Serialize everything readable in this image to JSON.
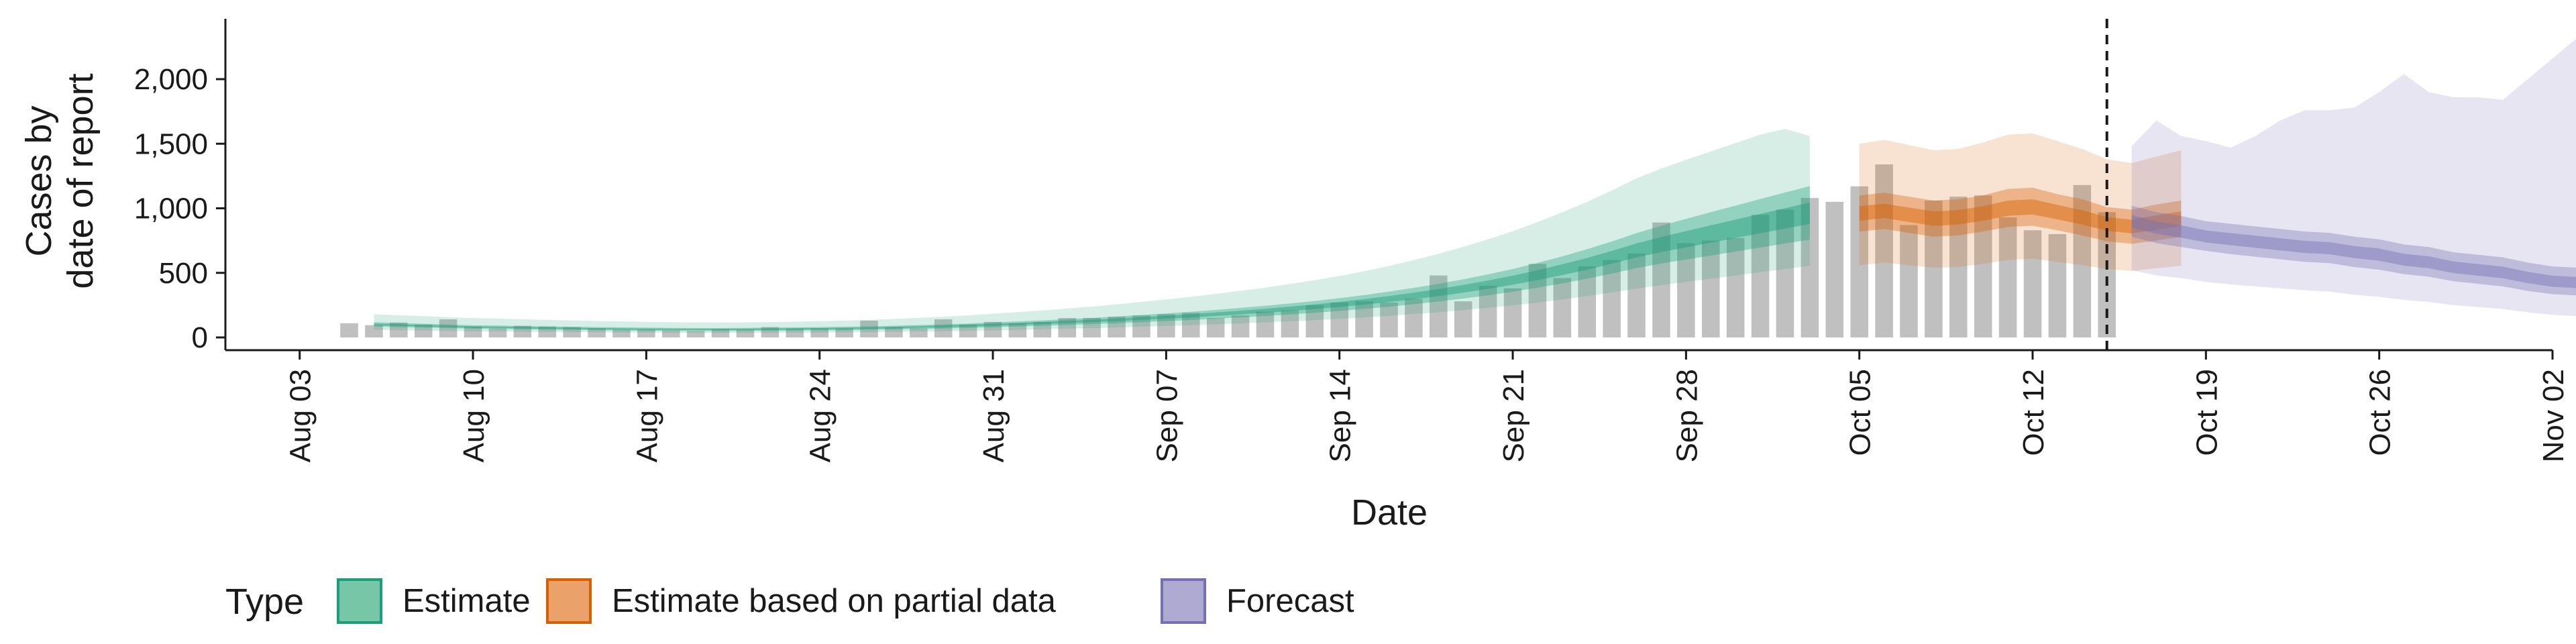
{
  "chart_data": {
    "type": "area",
    "xlabel": "Date",
    "ylabel": [
      "Cases by",
      "date of report"
    ],
    "ylim": [
      0,
      2400
    ],
    "y_ticks": [
      0,
      500,
      1000,
      1500,
      2000
    ],
    "y_tick_labels": [
      "0",
      "500",
      "1,000",
      "1,500",
      "2,000"
    ],
    "x_range": [
      "2020-07-31",
      "2020-11-02"
    ],
    "x_ticks": [
      "2020-08-03",
      "2020-08-10",
      "2020-08-17",
      "2020-08-24",
      "2020-08-31",
      "2020-09-07",
      "2020-09-14",
      "2020-09-21",
      "2020-09-28",
      "2020-10-05",
      "2020-10-12",
      "2020-10-19",
      "2020-10-26",
      "2020-11-02"
    ],
    "x_tick_labels": [
      "Aug 03",
      "Aug 10",
      "Aug 17",
      "Aug 24",
      "Aug 31",
      "Sep 07",
      "Sep 14",
      "Sep 21",
      "Sep 28",
      "Oct 05",
      "Oct 12",
      "Oct 19",
      "Oct 26",
      "Nov 02"
    ],
    "vline_date": "2020-10-15",
    "legend": {
      "position": "bottom",
      "title": "Type",
      "items": [
        {
          "label": "Estimate",
          "fill": "#78c6a8",
          "stroke": "#1b9e77"
        },
        {
          "label": "Estimate based on partial data",
          "fill": "#eba26a",
          "stroke": "#d95f02"
        },
        {
          "label": "Forecast",
          "fill": "#aeaad2",
          "stroke": "#7570b3"
        }
      ]
    },
    "colors": {
      "estimate": "#1b9e77",
      "partial": "#d95f02",
      "forecast": "#7570b3",
      "bars": "#bdbdbd"
    },
    "bars": {
      "start_date": "2020-08-05",
      "values": [
        110,
        95,
        115,
        100,
        140,
        85,
        70,
        90,
        85,
        80,
        70,
        60,
        60,
        55,
        50,
        65,
        60,
        80,
        70,
        70,
        70,
        130,
        80,
        70,
        140,
        100,
        120,
        110,
        120,
        150,
        150,
        160,
        170,
        180,
        190,
        150,
        170,
        200,
        210,
        250,
        270,
        280,
        270,
        300,
        480,
        280,
        400,
        380,
        570,
        460,
        550,
        600,
        650,
        890,
        730,
        750,
        770,
        950,
        990,
        1080,
        1050,
        1170,
        1340,
        870,
        1060,
        1090,
        1100,
        930,
        830,
        800,
        1180,
        970
      ]
    },
    "series": [
      {
        "name": "Estimate",
        "start_date": "2020-08-06",
        "median": [
          100,
          95,
          90,
          85,
          80,
          78,
          75,
          72,
          70,
          68,
          66,
          64,
          63,
          62,
          62,
          63,
          64,
          66,
          68,
          70,
          73,
          77,
          81,
          86,
          92,
          98,
          105,
          112,
          120,
          128,
          137,
          147,
          157,
          168,
          180,
          193,
          207,
          222,
          238,
          256,
          276,
          298,
          322,
          348,
          377,
          409,
          444,
          483,
          525,
          571,
          621,
          675,
          720,
          760,
          800,
          840,
          880,
          920,
          960
        ],
        "q25": [
          85,
          80,
          76,
          72,
          68,
          66,
          63,
          60,
          58,
          56,
          54,
          52,
          51,
          50,
          50,
          51,
          52,
          53,
          55,
          56,
          59,
          62,
          65,
          69,
          74,
          79,
          85,
          90,
          97,
          103,
          110,
          118,
          126,
          135,
          145,
          155,
          166,
          178,
          191,
          205,
          221,
          238,
          257,
          278,
          301,
          326,
          354,
          385,
          418,
          455,
          494,
          537,
          572,
          603,
          634,
          665,
          696,
          727,
          758
        ],
        "q75": [
          118,
          112,
          106,
          100,
          94,
          92,
          88,
          85,
          83,
          80,
          78,
          76,
          74,
          73,
          73,
          74,
          76,
          78,
          80,
          83,
          86,
          91,
          96,
          101,
          108,
          116,
          124,
          132,
          142,
          151,
          162,
          174,
          186,
          199,
          213,
          229,
          245,
          263,
          282,
          304,
          328,
          355,
          384,
          415,
          450,
          488,
          530,
          577,
          628,
          683,
          743,
          808,
          865,
          918,
          970,
          1021,
          1072,
          1122,
          1172
        ],
        "q05": [
          60,
          56,
          53,
          50,
          47,
          46,
          44,
          42,
          41,
          40,
          38,
          37,
          36,
          35,
          35,
          36,
          36,
          37,
          38,
          40,
          41,
          43,
          46,
          48,
          52,
          55,
          59,
          63,
          68,
          72,
          77,
          83,
          89,
          95,
          102,
          109,
          117,
          125,
          134,
          144,
          155,
          167,
          181,
          195,
          211,
          229,
          248,
          270,
          294,
          320,
          348,
          378,
          405,
          430,
          455,
          480,
          505,
          530,
          555
        ],
        "q95": [
          180,
          172,
          165,
          157,
          150,
          146,
          141,
          136,
          132,
          128,
          124,
          121,
          118,
          116,
          116,
          117,
          119,
          122,
          126,
          130,
          136,
          143,
          151,
          160,
          171,
          183,
          196,
          209,
          224,
          239,
          256,
          275,
          294,
          315,
          337,
          361,
          386,
          414,
          443,
          476,
          513,
          554,
          599,
          648,
          701,
          760,
          823,
          893,
          969,
          1050,
          1138,
          1232,
          1308,
          1375,
          1440,
          1505,
          1570,
          1615,
          1560
        ]
      },
      {
        "name": "Estimate based on partial data",
        "start_date": "2020-10-05",
        "median": [
          960,
          980,
          950,
          920,
          930,
          960,
          1000,
          1010,
          970,
          930,
          880,
          860,
          890,
          920
        ],
        "q25": [
          820,
          840,
          810,
          780,
          790,
          820,
          855,
          865,
          830,
          790,
          745,
          725,
          750,
          780
        ],
        "q75": [
          1100,
          1120,
          1090,
          1060,
          1070,
          1100,
          1150,
          1160,
          1110,
          1070,
          1010,
          990,
          1030,
          1060
        ],
        "q05": [
          560,
          580,
          560,
          540,
          545,
          570,
          600,
          610,
          585,
          560,
          530,
          515,
          535,
          555
        ],
        "q95": [
          1500,
          1530,
          1490,
          1450,
          1460,
          1510,
          1570,
          1580,
          1520,
          1460,
          1380,
          1350,
          1400,
          1450
        ]
      },
      {
        "name": "Forecast",
        "start_date": "2020-10-16",
        "median": [
          900,
          850,
          820,
          780,
          760,
          740,
          720,
          700,
          690,
          660,
          640,
          600,
          580,
          540,
          520,
          500,
          460,
          430,
          420
        ],
        "q25": [
          780,
          730,
          700,
          670,
          645,
          625,
          605,
          585,
          575,
          545,
          525,
          490,
          470,
          435,
          415,
          395,
          360,
          335,
          325
        ],
        "q75": [
          1020,
          970,
          940,
          900,
          880,
          860,
          840,
          820,
          810,
          780,
          760,
          720,
          700,
          660,
          640,
          620,
          580,
          550,
          540
        ],
        "q05": [
          520,
          480,
          460,
          430,
          410,
          395,
          380,
          365,
          355,
          330,
          315,
          290,
          275,
          250,
          235,
          220,
          195,
          175,
          165
        ],
        "q95": [
          1480,
          1680,
          1560,
          1520,
          1470,
          1560,
          1680,
          1760,
          1760,
          1780,
          1900,
          2040,
          1900,
          1860,
          1860,
          1840,
          2000,
          2160,
          2320
        ]
      }
    ]
  }
}
